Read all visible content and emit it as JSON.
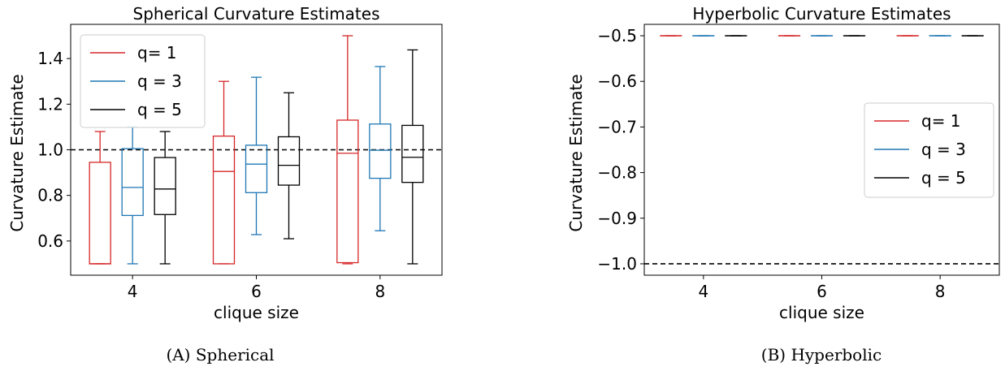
{
  "chart_data": [
    {
      "type": "box",
      "title": "Spherical Curvature Estimates",
      "xlabel": "clique size",
      "ylabel": "Curvature Estimate",
      "categories": [
        "4",
        "6",
        "8"
      ],
      "ylim": [
        0.45,
        1.55
      ],
      "yticks": [
        "0.6",
        "0.8",
        "1.0",
        "1.2",
        "1.4"
      ],
      "ytick_values": [
        0.6,
        0.8,
        1.0,
        1.2,
        1.4
      ],
      "reference_line": 1.0,
      "legend_position": "top-left",
      "caption": "(A) Spherical",
      "series": [
        {
          "name": "q= 1",
          "color": "#d62728",
          "boxes": [
            {
              "min": 0.5,
              "q1": 0.5,
              "median": 0.5,
              "q3": 0.945,
              "max": 1.08
            },
            {
              "min": 0.5,
              "q1": 0.5,
              "median": 0.905,
              "q3": 1.06,
              "max": 1.3
            },
            {
              "min": 0.5,
              "q1": 0.505,
              "median": 0.985,
              "q3": 1.13,
              "max": 1.5
            }
          ]
        },
        {
          "name": "q = 3",
          "color": "#1f77b4",
          "boxes": [
            {
              "min": 0.5,
              "q1": 0.712,
              "median": 0.835,
              "q3": 1.005,
              "max": 1.1
            },
            {
              "min": 0.628,
              "q1": 0.812,
              "median": 0.937,
              "q3": 1.02,
              "max": 1.318
            },
            {
              "min": 0.645,
              "q1": 0.875,
              "median": 0.998,
              "q3": 1.113,
              "max": 1.365
            }
          ]
        },
        {
          "name": "q = 5",
          "color": "#000000",
          "boxes": [
            {
              "min": 0.5,
              "q1": 0.716,
              "median": 0.828,
              "q3": 0.966,
              "max": 1.08
            },
            {
              "min": 0.61,
              "q1": 0.845,
              "median": 0.932,
              "q3": 1.057,
              "max": 1.25
            },
            {
              "min": 0.5,
              "q1": 0.857,
              "median": 0.967,
              "q3": 1.107,
              "max": 1.438
            }
          ]
        }
      ]
    },
    {
      "type": "box",
      "title": "Hyperbolic Curvature Estimates",
      "xlabel": "clique size",
      "ylabel": "Curvature Estimate",
      "categories": [
        "4",
        "6",
        "8"
      ],
      "ylim": [
        -1.025,
        -0.475
      ],
      "yticks": [
        "−0.5",
        "−0.6",
        "−0.7",
        "−0.8",
        "−0.9",
        "−1.0"
      ],
      "ytick_values": [
        -0.5,
        -0.6,
        -0.7,
        -0.8,
        -0.9,
        -1.0
      ],
      "reference_line": -1.0,
      "legend_position": "center-right",
      "caption": "(B) Hyperbolic",
      "series": [
        {
          "name": "q= 1",
          "color": "#d62728",
          "boxes": [
            {
              "min": -0.5,
              "q1": -0.5,
              "median": -0.5,
              "q3": -0.5,
              "max": -0.5
            },
            {
              "min": -0.5,
              "q1": -0.5,
              "median": -0.5,
              "q3": -0.5,
              "max": -0.5
            },
            {
              "min": -0.5,
              "q1": -0.5,
              "median": -0.5,
              "q3": -0.5,
              "max": -0.5
            }
          ]
        },
        {
          "name": "q = 3",
          "color": "#1f77b4",
          "boxes": [
            {
              "min": -0.5,
              "q1": -0.5,
              "median": -0.5,
              "q3": -0.5,
              "max": -0.5
            },
            {
              "min": -0.5,
              "q1": -0.5,
              "median": -0.5,
              "q3": -0.5,
              "max": -0.5
            },
            {
              "min": -0.5,
              "q1": -0.5,
              "median": -0.5,
              "q3": -0.5,
              "max": -0.5
            }
          ]
        },
        {
          "name": "q = 5",
          "color": "#000000",
          "boxes": [
            {
              "min": -0.5,
              "q1": -0.5,
              "median": -0.5,
              "q3": -0.5,
              "max": -0.5
            },
            {
              "min": -0.5,
              "q1": -0.5,
              "median": -0.5,
              "q3": -0.5,
              "max": -0.5
            },
            {
              "min": -0.5,
              "q1": -0.5,
              "median": -0.5,
              "q3": -0.5,
              "max": -0.5
            }
          ]
        }
      ]
    }
  ]
}
